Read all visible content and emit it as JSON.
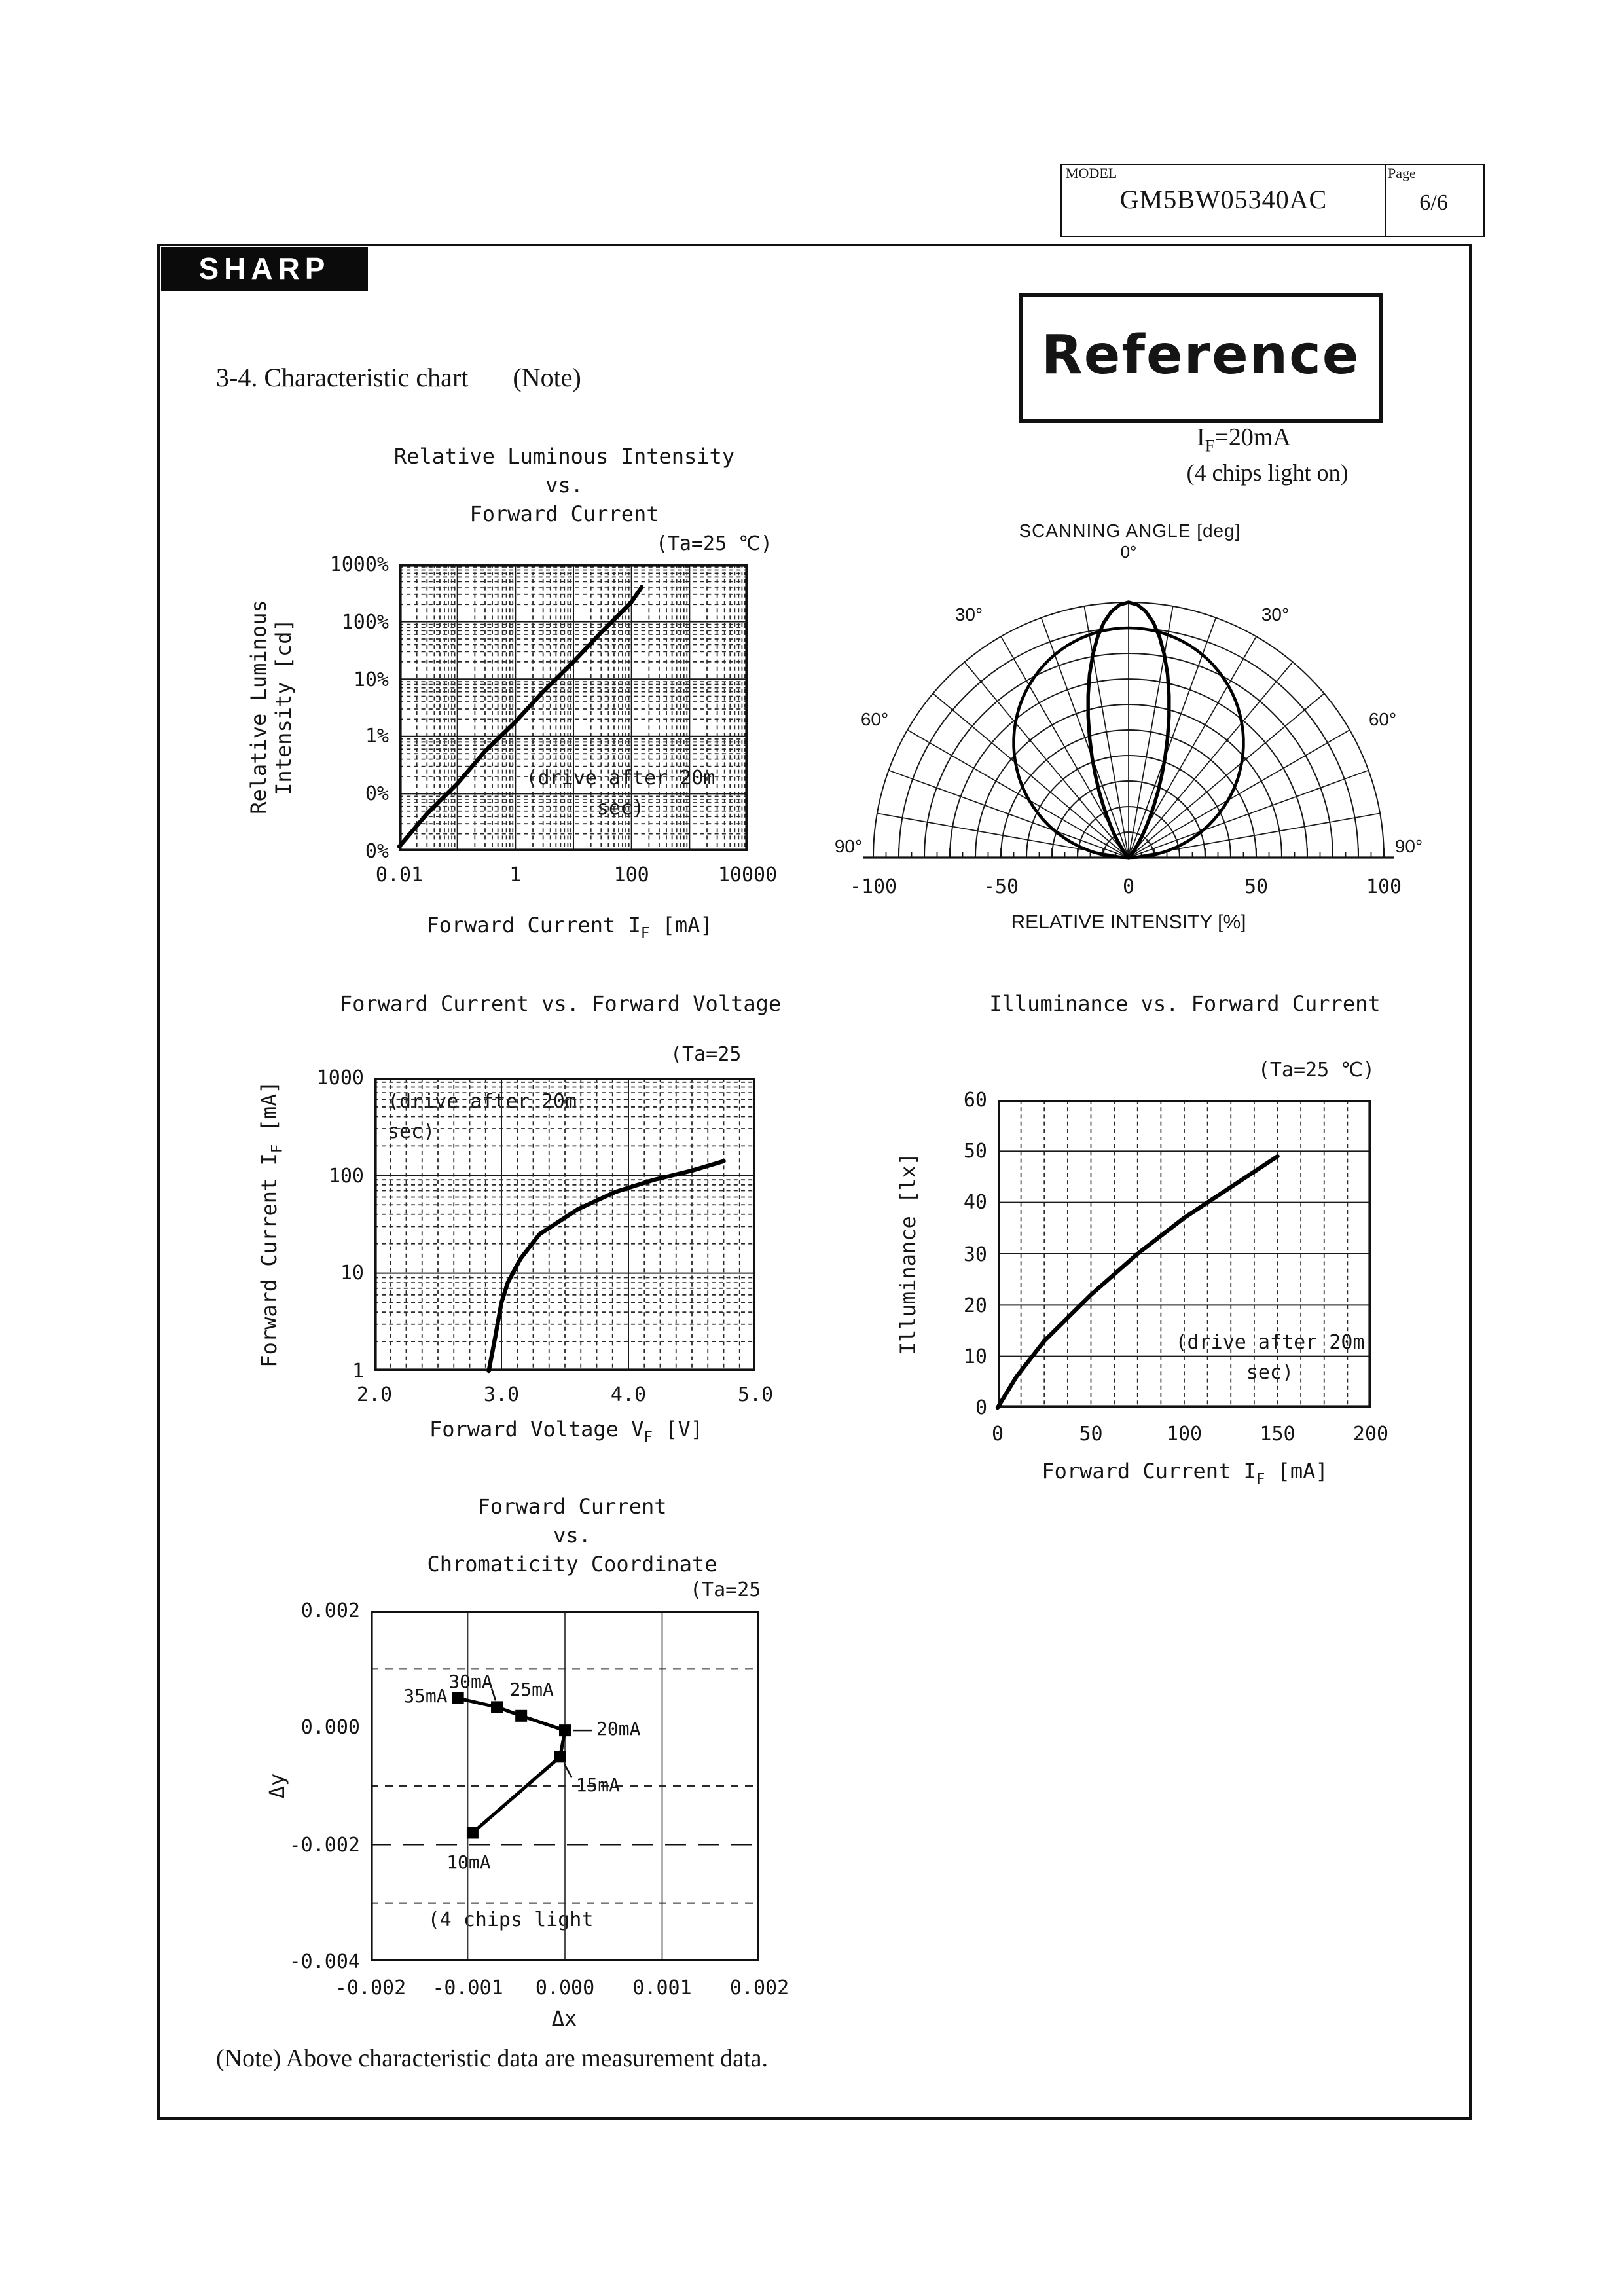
{
  "header": {
    "model_label": "MODEL",
    "model_value": "GM5BW05340AC",
    "page_label": "Page",
    "page_value": "6/6"
  },
  "brand": "SHARP",
  "stamp": "Reference",
  "section": {
    "title": "3-4. Characteristic chart",
    "note": "(Note)"
  },
  "footer_note": "(Note) Above characteristic data are measurement data.",
  "polar_header": {
    "if_pre": "I",
    "if_sub": "F",
    "if_post": "=20mA",
    "chips": "(4 chips light on)"
  },
  "chart_data": [
    {
      "id": "relative-luminous-intensity",
      "type": "line",
      "title_lines": [
        "Relative Luminous Intensity",
        "vs.",
        "Forward Current"
      ],
      "condition": "(Ta=25 ℃)",
      "xlabel_pre": "Forward Current I",
      "xlabel_sub": "F",
      "xlabel_post": " [mA]",
      "ylabel_lines": [
        "Relative Luminous",
        "Intensity [cd]"
      ],
      "x_scale": "log",
      "y_scale": "log",
      "xlim": [
        0.01,
        10000
      ],
      "ylim": [
        0.01,
        1000
      ],
      "x_tick_labels": [
        "0.01",
        "1",
        "100",
        "10000"
      ],
      "x_tick_values": [
        0.01,
        1,
        100,
        10000
      ],
      "y_tick_labels": [
        "1000%",
        "100%",
        "10%",
        "1%",
        "0%",
        "0%"
      ],
      "annotation_lines": [
        "(drive after 20m",
        "sec)"
      ],
      "series": [
        {
          "name": "relative luminous intensity",
          "points": [
            [
              0.01,
              0.012
            ],
            [
              0.03,
              0.045
            ],
            [
              0.1,
              0.15
            ],
            [
              0.3,
              0.55
            ],
            [
              1,
              1.8
            ],
            [
              3,
              6
            ],
            [
              10,
              20
            ],
            [
              30,
              65
            ],
            [
              100,
              220
            ],
            [
              150,
              400
            ]
          ]
        }
      ]
    },
    {
      "id": "scanning-angle-polar",
      "type": "line",
      "title": "SCANNING ANGLE [deg]",
      "zero_label": "0°",
      "angle_labels": [
        "30°",
        "60°",
        "90°"
      ],
      "axis_label": "RELATIVE INTENSITY [%]",
      "x_tick_labels": [
        "-100",
        "-50",
        "0",
        "50",
        "100"
      ],
      "rings": 10,
      "spoke_step_deg": 10,
      "lobes": [
        {
          "name": "narrow beam",
          "model": "cos_power",
          "power": 14,
          "peak_percent": 100
        },
        {
          "name": "broad beam",
          "model": "cos",
          "peak_percent": 90
        }
      ]
    },
    {
      "id": "forward-current-vs-forward-voltage",
      "type": "line",
      "title": "Forward Current vs. Forward Voltage",
      "condition": "(Ta=25",
      "xlabel_pre": "Forward Voltage  V",
      "xlabel_sub": "F",
      "xlabel_post": "  [V]",
      "ylabel_pre": "Forward Current  I",
      "ylabel_sub": "F",
      "ylabel_post": "  [mA]",
      "x_scale": "linear",
      "y_scale": "log",
      "xlim": [
        2.0,
        5.0
      ],
      "ylim": [
        1,
        1000
      ],
      "x_tick_labels": [
        "2.0",
        "3.0",
        "4.0",
        "5.0"
      ],
      "y_tick_labels": [
        "1000",
        "100",
        "10",
        "1"
      ],
      "annotation_lines": [
        "(drive after 20m",
        "sec)"
      ],
      "series": [
        {
          "name": "IF-VF",
          "points": [
            [
              2.9,
              1
            ],
            [
              2.95,
              2.2
            ],
            [
              3.0,
              5
            ],
            [
              3.05,
              8
            ],
            [
              3.15,
              14
            ],
            [
              3.3,
              25
            ],
            [
              3.6,
              45
            ],
            [
              3.9,
              68
            ],
            [
              4.2,
              90
            ],
            [
              4.5,
              112
            ],
            [
              4.75,
              140
            ]
          ]
        }
      ]
    },
    {
      "id": "illuminance-vs-forward-current",
      "type": "line",
      "title": "Illuminance vs. Forward Current",
      "condition": "(Ta=25 ℃)",
      "xlabel_pre": "Forward Current I",
      "xlabel_sub": "F",
      "xlabel_post": " [mA]",
      "ylabel": "Illuminance  [lx]",
      "x_scale": "linear",
      "y_scale": "linear",
      "xlim": [
        0,
        200
      ],
      "ylim": [
        0,
        60
      ],
      "x_tick_labels": [
        "0",
        "50",
        "100",
        "150",
        "200"
      ],
      "y_tick_labels": [
        "60",
        "50",
        "40",
        "30",
        "20",
        "10",
        "0"
      ],
      "annotation_lines": [
        "(drive after 20m",
        "sec)"
      ],
      "series": [
        {
          "name": "illuminance",
          "points": [
            [
              0,
              0
            ],
            [
              10,
              6
            ],
            [
              25,
              13
            ],
            [
              50,
              22
            ],
            [
              75,
              30
            ],
            [
              100,
              37
            ],
            [
              125,
              43
            ],
            [
              150,
              49
            ]
          ]
        }
      ]
    },
    {
      "id": "chromaticity-coordinate",
      "type": "scatter",
      "title_lines": [
        "Forward Current",
        "vs.",
        "Chromaticity Coordinate"
      ],
      "condition": "(Ta=25",
      "xlabel": "Δx",
      "ylabel": "Δy",
      "xlim": [
        -0.002,
        0.002
      ],
      "ylim": [
        -0.004,
        0.002
      ],
      "x_tick_labels": [
        "-0.002",
        "-0.001",
        "0.000",
        "0.001",
        "0.002"
      ],
      "y_tick_labels": [
        "0.002",
        "0.000",
        "-0.002",
        "-0.004"
      ],
      "note": "(4 chips light",
      "points": [
        {
          "label": "35mA",
          "x": -0.0011,
          "y": 0.0005
        },
        {
          "label": "30mA",
          "x": -0.0007,
          "y": 0.00035
        },
        {
          "label": "25mA",
          "x": -0.00045,
          "y": 0.0002
        },
        {
          "label": "20mA",
          "x": 0.0,
          "y": -5e-05
        },
        {
          "label": "15mA",
          "x": -5e-05,
          "y": -0.0005
        },
        {
          "label": "10mA",
          "x": -0.00095,
          "y": -0.0018
        }
      ]
    }
  ]
}
